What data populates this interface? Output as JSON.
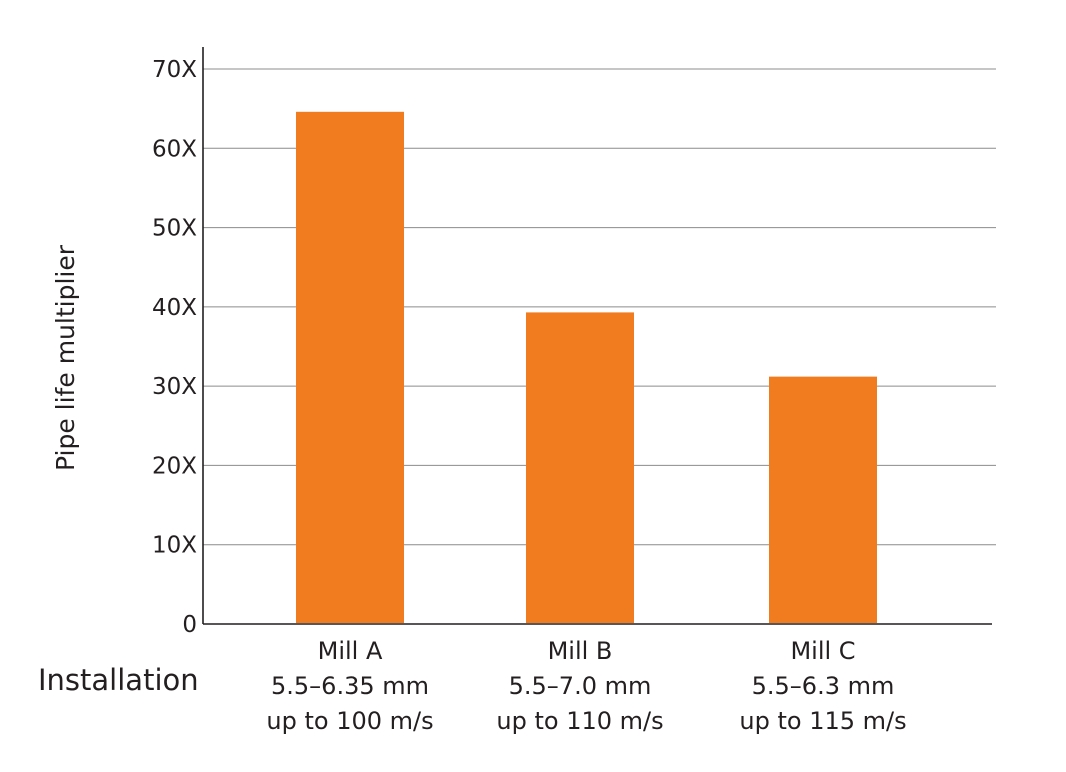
{
  "chart_data": {
    "type": "bar",
    "title": "",
    "ylabel": "Pipe life multiplier",
    "xlabel": "Installation",
    "ylim": [
      0,
      70
    ],
    "yticks": [
      0,
      10,
      20,
      30,
      40,
      50,
      60,
      70
    ],
    "ytick_labels": [
      "0",
      "10X",
      "20X",
      "30X",
      "40X",
      "50X",
      "60X",
      "70X"
    ],
    "grid": true,
    "bar_color": "#f07c1f",
    "categories": [
      {
        "lines": [
          "Mill A",
          "5.5–6.35 mm",
          "up to 100 m/s"
        ],
        "value": 64.6
      },
      {
        "lines": [
          "Mill B",
          "5.5–7.0 mm",
          "up to 110 m/s"
        ],
        "value": 39.3
      },
      {
        "lines": [
          "Mill C",
          "5.5–6.3 mm",
          "up to 115 m/s"
        ],
        "value": 31.2
      }
    ]
  }
}
